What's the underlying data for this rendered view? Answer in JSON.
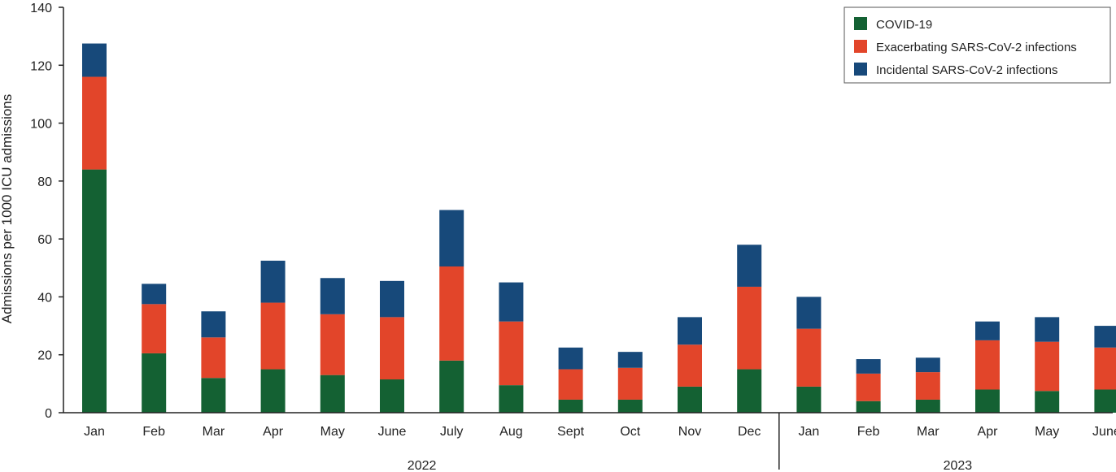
{
  "chart_data": {
    "type": "bar",
    "stacked": true,
    "ylabel": "Admissions per 1000 ICU admissions",
    "ylim": [
      0,
      140
    ],
    "yticks": [
      0,
      20,
      40,
      60,
      80,
      100,
      120,
      140
    ],
    "categories": [
      "Jan",
      "Feb",
      "Mar",
      "Apr",
      "May",
      "June",
      "July",
      "Aug",
      "Sept",
      "Oct",
      "Nov",
      "Dec",
      "Jan",
      "Feb",
      "Mar",
      "Apr",
      "May",
      "June"
    ],
    "groups": [
      {
        "label": "2022",
        "start": 0,
        "end": 11
      },
      {
        "label": "2023",
        "start": 12,
        "end": 17
      }
    ],
    "series": [
      {
        "name": "COVID-19",
        "color": "#146133",
        "values": [
          84,
          20.5,
          12,
          15,
          13,
          11.5,
          18,
          9.5,
          4.5,
          4.5,
          9,
          15,
          9,
          4,
          4.5,
          8,
          7.5,
          8
        ]
      },
      {
        "name": "Exacerbating SARS-CoV-2 infections",
        "color": "#e2452a",
        "values": [
          32,
          17,
          14,
          23,
          21,
          21.5,
          32.5,
          22,
          10.5,
          11,
          14.5,
          28.5,
          20,
          9.5,
          9.5,
          17,
          17,
          14.5
        ]
      },
      {
        "name": "Incidental SARS-CoV-2 infections",
        "color": "#17497a",
        "values": [
          11.5,
          7,
          9,
          14.5,
          12.5,
          12.5,
          19.5,
          13.5,
          7.5,
          5.5,
          9.5,
          14.5,
          11,
          5,
          5,
          6.5,
          8.5,
          7.5
        ]
      }
    ],
    "legend": "top-right",
    "grid": false
  }
}
